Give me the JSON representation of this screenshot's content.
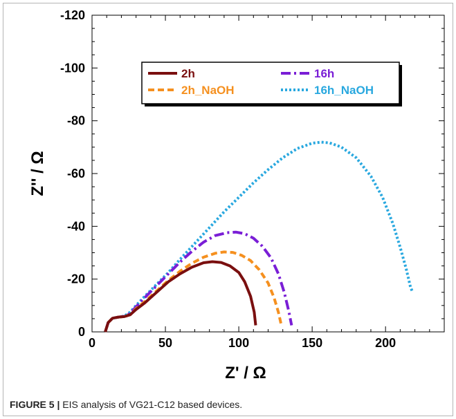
{
  "figure": {
    "caption_label": "FIGURE 5 |",
    "caption_text": " EIS analysis of VG21-C12 based devices."
  },
  "chart_data": {
    "type": "line",
    "xlabel": "Z' / Ω",
    "ylabel": "Z'' / Ω",
    "xlim": [
      0,
      240
    ],
    "ylim": [
      0,
      -120
    ],
    "x_ticks": [
      0,
      50,
      100,
      150,
      200
    ],
    "x_tick_labels": [
      "0",
      "50",
      "100",
      "150",
      "200"
    ],
    "y_ticks": [
      0,
      -20,
      -40,
      -60,
      -80,
      -100,
      -120
    ],
    "y_tick_labels": [
      "0",
      "-20",
      "-40",
      "-60",
      "-80",
      "-100",
      "-120"
    ],
    "grid": false,
    "legend_position": "top-center",
    "series": [
      {
        "name": "2h",
        "color": "#7a0f0f",
        "dash": "solid",
        "points": [
          [
            9,
            0
          ],
          [
            11,
            -3.5
          ],
          [
            14,
            -5.2
          ],
          [
            18,
            -5.6
          ],
          [
            22,
            -5.8
          ],
          [
            26,
            -6.5
          ],
          [
            30,
            -8.5
          ],
          [
            36,
            -11
          ],
          [
            44,
            -15
          ],
          [
            52,
            -19
          ],
          [
            60,
            -22
          ],
          [
            68,
            -24.5
          ],
          [
            76,
            -26.2
          ],
          [
            82,
            -26.6
          ],
          [
            88,
            -26.3
          ],
          [
            94,
            -25
          ],
          [
            100,
            -22.5
          ],
          [
            104,
            -19
          ],
          [
            108,
            -13.5
          ],
          [
            110.5,
            -7.5
          ],
          [
            111.5,
            -2.5
          ]
        ]
      },
      {
        "name": "16h",
        "color": "#7a1ed6",
        "dash": "dashdot",
        "points": [
          [
            9,
            0
          ],
          [
            11,
            -3.5
          ],
          [
            14,
            -5.2
          ],
          [
            18,
            -5.6
          ],
          [
            22,
            -5.9
          ],
          [
            26,
            -7
          ],
          [
            30,
            -9.5
          ],
          [
            36,
            -13
          ],
          [
            44,
            -17.5
          ],
          [
            52,
            -22
          ],
          [
            60,
            -26.5
          ],
          [
            68,
            -30.5
          ],
          [
            76,
            -34
          ],
          [
            84,
            -36.5
          ],
          [
            92,
            -37.6
          ],
          [
            98,
            -37.8
          ],
          [
            104,
            -37.2
          ],
          [
            110,
            -35.5
          ],
          [
            116,
            -32.5
          ],
          [
            122,
            -28
          ],
          [
            127,
            -22
          ],
          [
            131,
            -15
          ],
          [
            134,
            -8
          ],
          [
            136,
            -2.5
          ]
        ]
      },
      {
        "name": "2h_NaOH",
        "color": "#f5901f",
        "dash": "dashed",
        "points": [
          [
            9,
            0
          ],
          [
            11,
            -3.5
          ],
          [
            14,
            -5.2
          ],
          [
            18,
            -5.6
          ],
          [
            22,
            -5.8
          ],
          [
            26,
            -6.5
          ],
          [
            30,
            -8.8
          ],
          [
            36,
            -11.5
          ],
          [
            44,
            -15.5
          ],
          [
            52,
            -19.5
          ],
          [
            60,
            -23
          ],
          [
            68,
            -26
          ],
          [
            76,
            -28.3
          ],
          [
            84,
            -29.8
          ],
          [
            90,
            -30.3
          ],
          [
            96,
            -30.1
          ],
          [
            102,
            -29
          ],
          [
            108,
            -27
          ],
          [
            114,
            -23.5
          ],
          [
            120,
            -18.5
          ],
          [
            124,
            -13
          ],
          [
            127,
            -7.5
          ],
          [
            129,
            -2.5
          ]
        ]
      },
      {
        "name": "16h_NaOH",
        "color": "#29a8df",
        "dash": "dotted",
        "points": [
          [
            9,
            0
          ],
          [
            11,
            -3.5
          ],
          [
            14,
            -5.2
          ],
          [
            18,
            -5.6
          ],
          [
            22,
            -6
          ],
          [
            26,
            -7.5
          ],
          [
            30,
            -10
          ],
          [
            36,
            -13.5
          ],
          [
            44,
            -18
          ],
          [
            52,
            -22.5
          ],
          [
            60,
            -27.5
          ],
          [
            70,
            -33.5
          ],
          [
            80,
            -39.5
          ],
          [
            90,
            -45.5
          ],
          [
            100,
            -51
          ],
          [
            110,
            -56.5
          ],
          [
            120,
            -61.5
          ],
          [
            130,
            -66
          ],
          [
            140,
            -69.5
          ],
          [
            150,
            -71.5
          ],
          [
            156,
            -71.9
          ],
          [
            162,
            -71.6
          ],
          [
            170,
            -70
          ],
          [
            180,
            -66
          ],
          [
            190,
            -59
          ],
          [
            198,
            -51
          ],
          [
            205,
            -41
          ],
          [
            210,
            -32
          ],
          [
            214,
            -24
          ],
          [
            217,
            -17
          ],
          [
            218.5,
            -15
          ]
        ]
      }
    ]
  }
}
